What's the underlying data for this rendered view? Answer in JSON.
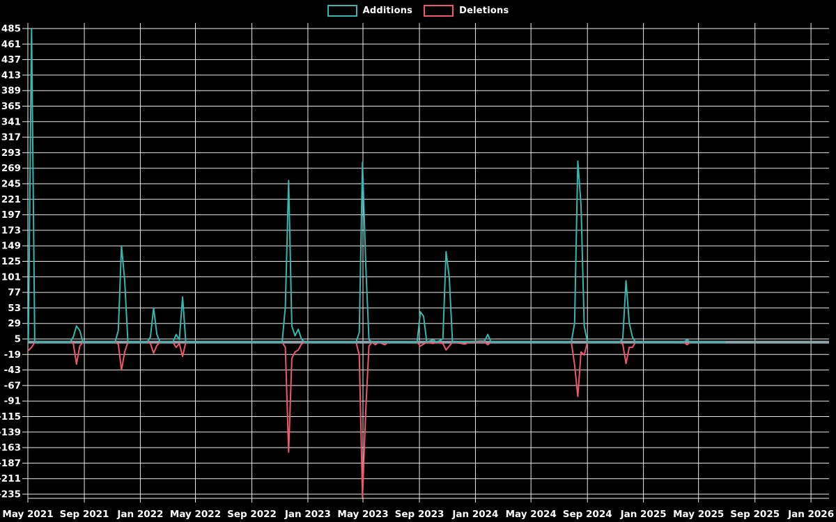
{
  "chart_data": {
    "type": "line",
    "title": "",
    "background_color": "#000000",
    "grid_color": "#ffffff",
    "text_color": "#ffffff",
    "zero_line_color": "#8da6ac",
    "grid": true,
    "legend_position": "top-center",
    "legend": [
      {
        "label": "Additions",
        "color": "#35b7ae"
      },
      {
        "label": "Deletions",
        "color": "#f0566e"
      }
    ],
    "y_axis": {
      "min": -235,
      "max": 485,
      "tick_step": 24,
      "ticks": [
        485,
        461,
        437,
        413,
        389,
        365,
        341,
        317,
        293,
        269,
        245,
        221,
        197,
        173,
        149,
        125,
        101,
        77,
        53,
        29,
        5,
        -19,
        -43,
        -67,
        -91,
        -115,
        -139,
        -163,
        -187,
        -211,
        -235
      ]
    },
    "x_axis": {
      "tick_dates": [
        "2021-05-01",
        "2021-09-01",
        "2022-01-01",
        "2022-05-01",
        "2022-09-01",
        "2023-01-01",
        "2023-05-01",
        "2023-09-01",
        "2024-01-01",
        "2024-05-01",
        "2024-09-01",
        "2025-01-01",
        "2025-05-01",
        "2025-09-01",
        "2026-01-01"
      ],
      "tick_labels": [
        "May 2021",
        "Sep 2021",
        "Jan 2022",
        "May 2022",
        "Sep 2022",
        "Jan 2023",
        "May 2023",
        "Sep 2023",
        "Jan 2024",
        "May 2024",
        "Sep 2024",
        "Jan 2025",
        "May 2025",
        "Sep 2025",
        "Jan 2026"
      ]
    },
    "series": [
      {
        "name": "Additions",
        "color": "#35b7ae",
        "points": [
          [
            "2021-05-02",
            0
          ],
          [
            "2021-05-09",
            485
          ],
          [
            "2021-05-16",
            0
          ],
          [
            "2021-08-01",
            0
          ],
          [
            "2021-08-08",
            8
          ],
          [
            "2021-08-15",
            25
          ],
          [
            "2021-08-22",
            18
          ],
          [
            "2021-08-29",
            0
          ],
          [
            "2021-11-07",
            0
          ],
          [
            "2021-11-14",
            18
          ],
          [
            "2021-11-21",
            149
          ],
          [
            "2021-11-28",
            95
          ],
          [
            "2021-12-05",
            0
          ],
          [
            "2022-01-16",
            0
          ],
          [
            "2022-01-23",
            8
          ],
          [
            "2022-01-30",
            53
          ],
          [
            "2022-02-06",
            12
          ],
          [
            "2022-02-13",
            0
          ],
          [
            "2022-03-13",
            0
          ],
          [
            "2022-03-20",
            12
          ],
          [
            "2022-03-27",
            4
          ],
          [
            "2022-04-03",
            70
          ],
          [
            "2022-04-10",
            0
          ],
          [
            "2022-11-06",
            0
          ],
          [
            "2022-11-13",
            55
          ],
          [
            "2022-11-20",
            250
          ],
          [
            "2022-11-27",
            25
          ],
          [
            "2022-12-04",
            10
          ],
          [
            "2022-12-11",
            20
          ],
          [
            "2022-12-18",
            5
          ],
          [
            "2022-12-25",
            0
          ],
          [
            "2023-04-16",
            0
          ],
          [
            "2023-04-23",
            15
          ],
          [
            "2023-04-30",
            278
          ],
          [
            "2023-05-07",
            120
          ],
          [
            "2023-05-14",
            4
          ],
          [
            "2023-05-21",
            0
          ],
          [
            "2023-08-27",
            0
          ],
          [
            "2023-09-03",
            47
          ],
          [
            "2023-09-10",
            40
          ],
          [
            "2023-09-17",
            0
          ],
          [
            "2023-10-01",
            4
          ],
          [
            "2023-10-08",
            0
          ],
          [
            "2023-10-22",
            5
          ],
          [
            "2023-10-29",
            140
          ],
          [
            "2023-11-05",
            100
          ],
          [
            "2023-11-12",
            0
          ],
          [
            "2024-01-21",
            2
          ],
          [
            "2024-01-28",
            12
          ],
          [
            "2024-02-04",
            0
          ],
          [
            "2024-07-28",
            0
          ],
          [
            "2024-08-04",
            30
          ],
          [
            "2024-08-11",
            280
          ],
          [
            "2024-08-18",
            212
          ],
          [
            "2024-08-25",
            25
          ],
          [
            "2024-09-01",
            0
          ],
          [
            "2024-11-10",
            0
          ],
          [
            "2024-11-17",
            5
          ],
          [
            "2024-11-24",
            95
          ],
          [
            "2024-12-01",
            30
          ],
          [
            "2024-12-08",
            8
          ],
          [
            "2024-12-15",
            0
          ],
          [
            "2025-03-30",
            0
          ],
          [
            "2025-04-06",
            4
          ],
          [
            "2025-04-13",
            0
          ],
          [
            "2025-06-29",
            0
          ]
        ]
      },
      {
        "name": "Deletions",
        "color": "#f0566e",
        "points": [
          [
            "2021-05-02",
            -13
          ],
          [
            "2021-05-09",
            -8
          ],
          [
            "2021-05-16",
            0
          ],
          [
            "2021-08-01",
            0
          ],
          [
            "2021-08-08",
            -2
          ],
          [
            "2021-08-15",
            -34
          ],
          [
            "2021-08-22",
            -6
          ],
          [
            "2021-08-29",
            0
          ],
          [
            "2021-11-07",
            0
          ],
          [
            "2021-11-14",
            -3
          ],
          [
            "2021-11-21",
            -43
          ],
          [
            "2021-11-28",
            -15
          ],
          [
            "2021-12-05",
            0
          ],
          [
            "2022-01-16",
            0
          ],
          [
            "2022-01-23",
            -2
          ],
          [
            "2022-01-30",
            -17
          ],
          [
            "2022-02-06",
            -5
          ],
          [
            "2022-02-13",
            0
          ],
          [
            "2022-03-13",
            0
          ],
          [
            "2022-03-20",
            -8
          ],
          [
            "2022-03-27",
            -2
          ],
          [
            "2022-04-03",
            -22
          ],
          [
            "2022-04-10",
            0
          ],
          [
            "2022-11-06",
            0
          ],
          [
            "2022-11-13",
            -8
          ],
          [
            "2022-11-20",
            -170
          ],
          [
            "2022-11-27",
            -25
          ],
          [
            "2022-12-04",
            -15
          ],
          [
            "2022-12-11",
            -12
          ],
          [
            "2022-12-18",
            -3
          ],
          [
            "2022-12-25",
            0
          ],
          [
            "2023-04-16",
            0
          ],
          [
            "2023-04-23",
            -20
          ],
          [
            "2023-04-30",
            -240
          ],
          [
            "2023-05-07",
            -106
          ],
          [
            "2023-05-14",
            -6
          ],
          [
            "2023-05-21",
            0
          ],
          [
            "2023-05-28",
            -4
          ],
          [
            "2023-06-04",
            0
          ],
          [
            "2023-06-18",
            -4
          ],
          [
            "2023-06-25",
            0
          ],
          [
            "2023-08-27",
            0
          ],
          [
            "2023-09-03",
            -6
          ],
          [
            "2023-09-10",
            -3
          ],
          [
            "2023-09-17",
            0
          ],
          [
            "2023-10-01",
            -2
          ],
          [
            "2023-10-08",
            0
          ],
          [
            "2023-10-22",
            -2
          ],
          [
            "2023-10-29",
            -12
          ],
          [
            "2023-11-05",
            -6
          ],
          [
            "2023-11-12",
            0
          ],
          [
            "2023-12-10",
            -3
          ],
          [
            "2023-12-17",
            0
          ],
          [
            "2024-01-21",
            0
          ],
          [
            "2024-01-28",
            -4
          ],
          [
            "2024-02-04",
            0
          ],
          [
            "2024-07-28",
            0
          ],
          [
            "2024-08-04",
            -35
          ],
          [
            "2024-08-11",
            -84
          ],
          [
            "2024-08-18",
            -15
          ],
          [
            "2024-08-25",
            -20
          ],
          [
            "2024-09-01",
            0
          ],
          [
            "2024-11-10",
            0
          ],
          [
            "2024-11-17",
            -3
          ],
          [
            "2024-11-24",
            -33
          ],
          [
            "2024-12-01",
            -8
          ],
          [
            "2024-12-08",
            -8
          ],
          [
            "2024-12-15",
            0
          ],
          [
            "2025-03-30",
            0
          ],
          [
            "2025-04-06",
            -4
          ],
          [
            "2025-04-13",
            0
          ],
          [
            "2025-06-29",
            0
          ]
        ]
      }
    ]
  }
}
